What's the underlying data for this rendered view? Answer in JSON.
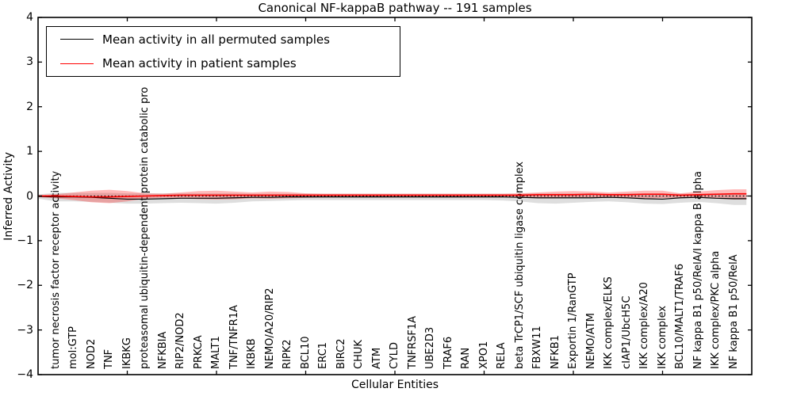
{
  "figure": {
    "title": "Canonical NF-kappaB pathway -- 191 samples",
    "xlabel": "Cellular Entities",
    "ylabel": "Inferred Activity"
  },
  "legend": {
    "items": [
      {
        "label": "Mean activity in all permuted samples",
        "color": "#000000"
      },
      {
        "label": "Mean activity in patient samples",
        "color": "#ff0000"
      }
    ]
  },
  "chart_data": {
    "type": "line",
    "title": "Canonical NF-kappaB pathway -- 191 samples",
    "xlabel": "Cellular Entities",
    "ylabel": "Inferred Activity",
    "ylim": [
      -4,
      4
    ],
    "yticks": [
      4,
      3,
      2,
      1,
      0,
      -1,
      -2,
      -3,
      -4
    ],
    "ytick_labels": [
      "4",
      "3",
      "2",
      "1",
      "0",
      "−1",
      "−2",
      "−3",
      "−4"
    ],
    "grid": false,
    "legend_position": "upper left",
    "zero_line": true,
    "categories": [
      "tumor necrosis factor receptor activity",
      "mol:GTP",
      "NOD2",
      "TNF",
      "IKBKG",
      "proteasomal ubiquitin-dependent protein catabolic pro",
      "NFKBIA",
      "RIP2/NOD2",
      "PRKCA",
      "MALT1",
      "TNF/TNFR1A",
      "IKBKB",
      "NEMO/A20/RIP2",
      "RIPK2",
      "BCL10",
      "ERC1",
      "BIRC2",
      "CHUK",
      "ATM",
      "CYLD",
      "TNFRSF1A",
      "UBE2D3",
      "TRAF6",
      "RAN",
      "XPO1",
      "RELA",
      "beta TrCP1/SCF ubiquitin ligase complex",
      "FBXW11",
      "NFKB1",
      "Exportin 1/RanGTP",
      "NEMO/ATM",
      "IKK complex/ELKS",
      "cIAP1/UbcH5C",
      "IKK complex/A20",
      "IKK complex",
      "BCL10/MALT1/TRAF6",
      "NF kappa B1 p50/RelA/I kappa B alpha",
      "IKK complex/PKC alpha",
      "NF kappa B1 p50/RelA"
    ],
    "series": [
      {
        "name": "Mean activity in all permuted samples",
        "color": "#000000",
        "band_color": "rgba(0,0,0,0.13)",
        "values": [
          -0.02,
          -0.02,
          -0.03,
          -0.05,
          -0.07,
          -0.07,
          -0.06,
          -0.05,
          -0.05,
          -0.05,
          -0.04,
          -0.03,
          -0.03,
          -0.02,
          -0.02,
          -0.02,
          -0.02,
          -0.02,
          -0.02,
          -0.02,
          -0.02,
          -0.02,
          -0.02,
          -0.02,
          -0.02,
          -0.02,
          -0.03,
          -0.04,
          -0.04,
          -0.04,
          -0.04,
          -0.03,
          -0.04,
          -0.06,
          -0.07,
          -0.04,
          -0.03,
          -0.05,
          -0.06
        ],
        "band_upper": [
          0.07,
          0.07,
          0.07,
          0.07,
          0.06,
          0.06,
          0.06,
          0.06,
          0.06,
          0.06,
          0.06,
          0.05,
          0.05,
          0.05,
          0.05,
          0.05,
          0.05,
          0.05,
          0.05,
          0.05,
          0.05,
          0.05,
          0.05,
          0.05,
          0.05,
          0.05,
          0.05,
          0.06,
          0.06,
          0.06,
          0.06,
          0.05,
          0.06,
          0.06,
          0.06,
          0.05,
          0.05,
          0.06,
          0.06
        ],
        "band_lower": [
          -0.12,
          -0.12,
          -0.13,
          -0.15,
          -0.17,
          -0.17,
          -0.16,
          -0.15,
          -0.16,
          -0.17,
          -0.15,
          -0.12,
          -0.11,
          -0.1,
          -0.09,
          -0.09,
          -0.09,
          -0.09,
          -0.09,
          -0.09,
          -0.09,
          -0.09,
          -0.09,
          -0.09,
          -0.09,
          -0.1,
          -0.12,
          -0.16,
          -0.17,
          -0.15,
          -0.13,
          -0.12,
          -0.14,
          -0.17,
          -0.18,
          -0.15,
          -0.13,
          -0.16,
          -0.2
        ]
      },
      {
        "name": "Mean activity in patient samples",
        "color": "#ff0000",
        "band_color": "rgba(255,0,0,0.27)",
        "values": [
          0.0,
          -0.01,
          -0.02,
          -0.02,
          -0.01,
          0.0,
          0.01,
          0.02,
          0.02,
          0.02,
          0.02,
          0.02,
          0.02,
          0.02,
          0.02,
          0.02,
          0.02,
          0.02,
          0.02,
          0.02,
          0.02,
          0.02,
          0.02,
          0.02,
          0.02,
          0.02,
          0.02,
          0.03,
          0.03,
          0.03,
          0.04,
          0.03,
          0.03,
          0.04,
          0.04,
          0.02,
          0.03,
          0.04,
          0.05
        ],
        "band_upper": [
          0.04,
          0.08,
          0.12,
          0.14,
          0.11,
          0.06,
          0.05,
          0.08,
          0.11,
          0.12,
          0.1,
          0.08,
          0.1,
          0.09,
          0.06,
          0.05,
          0.05,
          0.05,
          0.05,
          0.05,
          0.05,
          0.05,
          0.05,
          0.05,
          0.05,
          0.05,
          0.06,
          0.08,
          0.1,
          0.11,
          0.1,
          0.08,
          0.1,
          0.12,
          0.12,
          0.06,
          0.1,
          0.13,
          0.15
        ],
        "band_lower": [
          -0.05,
          -0.09,
          -0.14,
          -0.16,
          -0.12,
          -0.06,
          -0.04,
          -0.05,
          -0.07,
          -0.08,
          -0.07,
          -0.05,
          -0.06,
          -0.05,
          -0.04,
          -0.03,
          -0.03,
          -0.03,
          -0.03,
          -0.03,
          -0.03,
          -0.03,
          -0.03,
          -0.03,
          -0.03,
          -0.03,
          -0.04,
          -0.05,
          -0.05,
          -0.04,
          -0.03,
          -0.03,
          -0.04,
          -0.05,
          -0.05,
          -0.03,
          -0.04,
          -0.06,
          -0.08
        ]
      }
    ]
  }
}
